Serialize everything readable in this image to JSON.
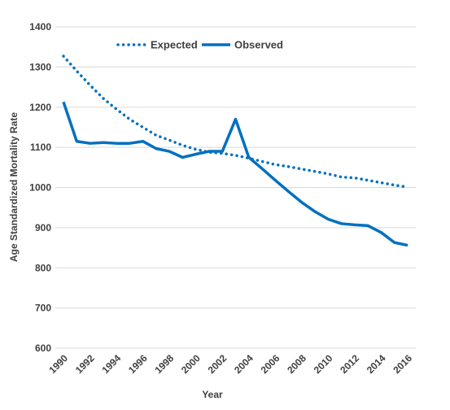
{
  "chart_data": {
    "type": "line",
    "title": "",
    "xlabel": "Year",
    "ylabel": "Age Standardized Mortality Rate",
    "xlim": [
      1990,
      2016
    ],
    "ylim": [
      600,
      1400
    ],
    "y_ticks": [
      600,
      700,
      800,
      900,
      1000,
      1100,
      1200,
      1300,
      1400
    ],
    "x_tick_labels": [
      "1990",
      "1992",
      "1994",
      "1996",
      "1998",
      "2000",
      "2002",
      "2004",
      "2006",
      "2008",
      "2010",
      "2012",
      "2014",
      "2016"
    ],
    "grid": "horizontal",
    "legend_position": "top-left",
    "x": [
      1990,
      1991,
      1992,
      1993,
      1994,
      1995,
      1996,
      1997,
      1998,
      1999,
      2000,
      2001,
      2002,
      2003,
      2004,
      2005,
      2006,
      2007,
      2008,
      2009,
      2010,
      2011,
      2012,
      2013,
      2014,
      2015,
      2016
    ],
    "series": [
      {
        "name": "Expected",
        "style": "dotted",
        "color": "#0070c0",
        "values": [
          1327,
          1290,
          1255,
          1222,
          1195,
          1170,
          1150,
          1130,
          1118,
          1105,
          1095,
          1088,
          1085,
          1080,
          1073,
          1065,
          1057,
          1052,
          1046,
          1040,
          1034,
          1026,
          1024,
          1018,
          1012,
          1006,
          1001
        ]
      },
      {
        "name": "Observed",
        "style": "solid",
        "color": "#0070c0",
        "values": [
          1213,
          1115,
          1110,
          1112,
          1110,
          1110,
          1115,
          1097,
          1090,
          1075,
          1083,
          1090,
          1090,
          1170,
          1075,
          1047,
          1018,
          990,
          963,
          940,
          921,
          910,
          907,
          905,
          888,
          863,
          856
        ]
      }
    ]
  }
}
